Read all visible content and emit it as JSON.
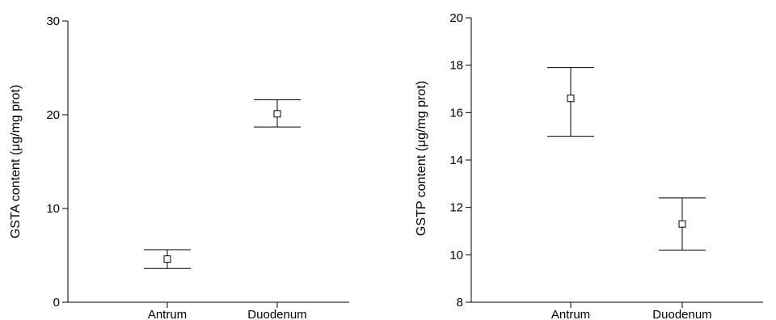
{
  "chart_data": [
    {
      "type": "scatter",
      "title": "",
      "xlabel": "",
      "ylabel": "GSTA content (μg/mg prot)",
      "categories": [
        "Antrum",
        "Duodenum"
      ],
      "ylim": [
        0,
        30
      ],
      "yticks": [
        0,
        10,
        20,
        30
      ],
      "values": [
        4.6,
        20.1
      ],
      "error_low": [
        3.6,
        18.7
      ],
      "error_high": [
        5.6,
        21.6
      ],
      "marker": "open-square",
      "grid": false
    },
    {
      "type": "scatter",
      "title": "",
      "xlabel": "",
      "ylabel": "GSTP content (μg/mg prot)",
      "categories": [
        "Antrum",
        "Duodenum"
      ],
      "ylim": [
        8,
        20
      ],
      "yticks": [
        8,
        10,
        12,
        14,
        16,
        18,
        20
      ],
      "values": [
        16.6,
        11.3
      ],
      "error_low": [
        15.0,
        10.2
      ],
      "error_high": [
        17.9,
        12.4
      ],
      "marker": "open-square",
      "grid": false
    }
  ]
}
